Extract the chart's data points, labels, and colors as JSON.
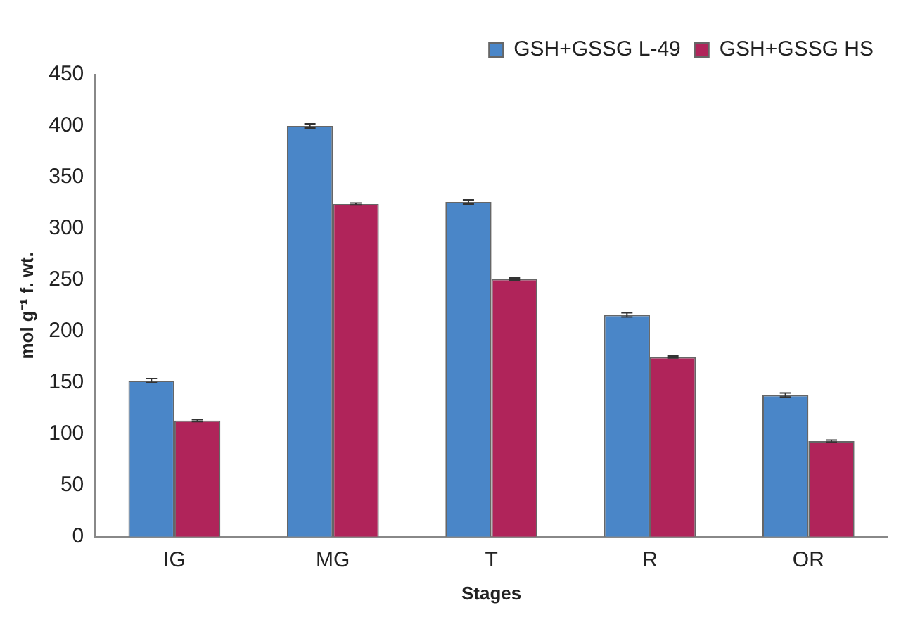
{
  "chart_data": {
    "type": "bar",
    "xlabel": "Stages",
    "ylabel": "mol g⁻¹ f. wt.",
    "categories": [
      "IG",
      "MG",
      "T",
      "R",
      "OR"
    ],
    "series": [
      {
        "name": "GSH+GSSG L-49",
        "color": "#4a86c8",
        "values": [
          152,
          400,
          326,
          216,
          138
        ],
        "errors": [
          2,
          2,
          2,
          2,
          2
        ]
      },
      {
        "name": "GSH+GSSG HS",
        "color": "#b0245a",
        "values": [
          113,
          324,
          251,
          175,
          93
        ],
        "errors": [
          1,
          1,
          1,
          1,
          1
        ]
      }
    ],
    "ylim": [
      0,
      450
    ],
    "yticks": [
      0,
      50,
      100,
      150,
      200,
      250,
      300,
      350,
      400,
      450
    ],
    "grid": false,
    "legend": "top right"
  }
}
